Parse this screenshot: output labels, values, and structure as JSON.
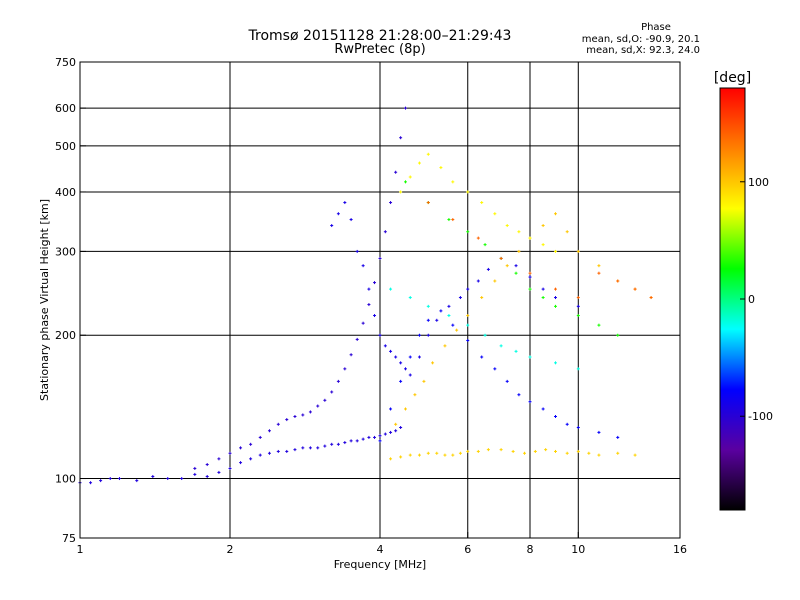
{
  "chart_data": {
    "type": "scatter",
    "title": "Tromsø 20151128 21:28:00–21:29:43",
    "subtitle": "RwPretec (8p)",
    "xlabel": "Frequency [MHz]",
    "ylabel": "Stationary phase Virtual Height [km]",
    "x_scale": "log",
    "y_scale": "log",
    "xlim": [
      1,
      16
    ],
    "ylim": [
      75,
      750
    ],
    "x_ticks": [
      1,
      2,
      4,
      6,
      8,
      10,
      16
    ],
    "y_ticks": [
      75,
      100,
      200,
      300,
      400,
      500,
      600,
      750
    ],
    "grid": true,
    "colorbar": {
      "label": "[deg]",
      "range": [
        -180,
        180
      ],
      "ticks": [
        -100,
        0,
        100
      ],
      "colors": [
        "#000000",
        "#5a00a0",
        "#0000ff",
        "#00ffff",
        "#00ff00",
        "#ffff00",
        "#ff8000",
        "#ff0000"
      ]
    },
    "stats": {
      "heading": "Phase",
      "line1": "mean, sd,O: -90.9, 20.1",
      "line2": "mean, sd,X:  92.3, 24.0"
    },
    "series": [
      {
        "phase": -95,
        "x": [
          1.0,
          1.05,
          1.1,
          1.15,
          1.2,
          1.3,
          1.4,
          1.5,
          1.6,
          1.7,
          1.8,
          1.9,
          2.0,
          2.1,
          2.2,
          2.3,
          2.4,
          2.5,
          2.6,
          2.7,
          2.8,
          2.9,
          3.0,
          3.1,
          3.2,
          3.3,
          3.4,
          3.5,
          3.6,
          3.7,
          3.8,
          3.9,
          4.0,
          4.1,
          4.2,
          4.3,
          4.4
        ],
        "y": [
          98,
          98,
          99,
          100,
          100,
          99,
          101,
          100,
          100,
          102,
          101,
          103,
          105,
          108,
          110,
          112,
          113,
          114,
          114,
          115,
          116,
          116,
          116,
          117,
          118,
          118,
          119,
          120,
          120,
          121,
          122,
          122,
          123,
          124,
          125,
          126,
          128
        ]
      },
      {
        "phase": -100,
        "x": [
          1.7,
          1.8,
          1.9,
          2.0,
          2.1,
          2.2,
          2.3,
          2.4,
          2.5,
          2.6,
          2.7,
          2.8,
          2.9,
          3.0,
          3.1,
          3.2,
          3.3,
          3.4,
          3.5,
          3.6,
          3.7,
          3.8,
          3.9,
          4.0,
          4.1,
          4.2,
          4.3,
          4.4,
          4.5
        ],
        "y": [
          105,
          107,
          110,
          113,
          116,
          118,
          122,
          126,
          130,
          133,
          135,
          136,
          138,
          142,
          146,
          152,
          160,
          170,
          182,
          196,
          212,
          232,
          258,
          290,
          330,
          380,
          440,
          520,
          600
        ]
      },
      {
        "phase": -90,
        "x": [
          3.2,
          3.3,
          3.4,
          3.5,
          3.6,
          3.7,
          3.8,
          3.9,
          4.0,
          4.1,
          4.2,
          4.3,
          4.4,
          4.5,
          4.6,
          4.8,
          5.0,
          5.2,
          5.5,
          5.8,
          6.0,
          6.3,
          6.6,
          7.0,
          7.5,
          8.0,
          8.5,
          9.0,
          10.0
        ],
        "y": [
          340,
          360,
          380,
          350,
          300,
          280,
          250,
          220,
          200,
          190,
          185,
          180,
          175,
          170,
          165,
          180,
          200,
          215,
          230,
          240,
          250,
          260,
          275,
          290,
          280,
          265,
          250,
          240,
          230
        ]
      },
      {
        "phase": -80,
        "x": [
          4.0,
          4.2,
          4.4,
          4.6,
          4.8,
          5.0,
          5.3,
          5.6,
          6.0,
          6.4,
          6.8,
          7.2,
          7.6,
          8.0,
          8.5,
          9.0,
          9.5,
          10.0,
          11.0,
          12.0
        ],
        "y": [
          120,
          140,
          160,
          180,
          200,
          215,
          225,
          210,
          195,
          180,
          170,
          160,
          150,
          145,
          140,
          135,
          130,
          128,
          125,
          122
        ]
      },
      {
        "phase": 95,
        "x": [
          4.2,
          4.4,
          4.6,
          4.8,
          5.0,
          5.2,
          5.4,
          5.6,
          5.8,
          6.0,
          6.3,
          6.6,
          7.0,
          7.4,
          7.8,
          8.2,
          8.6,
          9.0,
          9.5,
          10.0,
          10.5,
          11.0,
          12.0,
          13.0
        ],
        "y": [
          110,
          111,
          112,
          112,
          113,
          113,
          112,
          112,
          113,
          114,
          114,
          115,
          115,
          114,
          113,
          114,
          115,
          114,
          113,
          114,
          113,
          112,
          113,
          112
        ]
      },
      {
        "phase": 100,
        "x": [
          4.3,
          4.5,
          4.7,
          4.9,
          5.1,
          5.4,
          5.7,
          6.0,
          6.4,
          6.8,
          7.2,
          7.6,
          8.0,
          8.5,
          9.0,
          9.5,
          10.0,
          11.0,
          12.0,
          13.0,
          14.0
        ],
        "y": [
          130,
          140,
          150,
          160,
          175,
          190,
          205,
          220,
          240,
          260,
          280,
          300,
          320,
          340,
          360,
          330,
          300,
          280,
          260,
          250,
          240
        ]
      },
      {
        "phase": 80,
        "x": [
          4.4,
          4.6,
          4.8,
          5.0,
          5.3,
          5.6,
          6.0,
          6.4,
          6.8,
          7.2,
          7.6,
          8.0,
          8.5,
          9.0
        ],
        "y": [
          400,
          430,
          460,
          480,
          450,
          420,
          400,
          380,
          360,
          340,
          330,
          320,
          310,
          300
        ]
      },
      {
        "phase": 30,
        "x": [
          4.5,
          5.0,
          5.5,
          6.0,
          6.5,
          7.0,
          7.5,
          8.0,
          8.5,
          9.0,
          10.0,
          11.0,
          12.0
        ],
        "y": [
          420,
          380,
          350,
          330,
          310,
          290,
          270,
          250,
          240,
          230,
          220,
          210,
          200
        ]
      },
      {
        "phase": -20,
        "x": [
          4.2,
          4.6,
          5.0,
          5.5,
          6.0,
          6.5,
          7.0,
          7.5,
          8.0,
          9.0,
          10.0
        ],
        "y": [
          250,
          240,
          230,
          220,
          210,
          200,
          190,
          185,
          180,
          175,
          170
        ]
      },
      {
        "phase": 140,
        "x": [
          5.0,
          5.6,
          6.3,
          7.0,
          8.0,
          9.0,
          10.0,
          11.0,
          12.0,
          13.0,
          14.0
        ],
        "y": [
          380,
          350,
          320,
          290,
          270,
          250,
          240,
          270,
          260,
          250,
          240
        ]
      }
    ]
  }
}
